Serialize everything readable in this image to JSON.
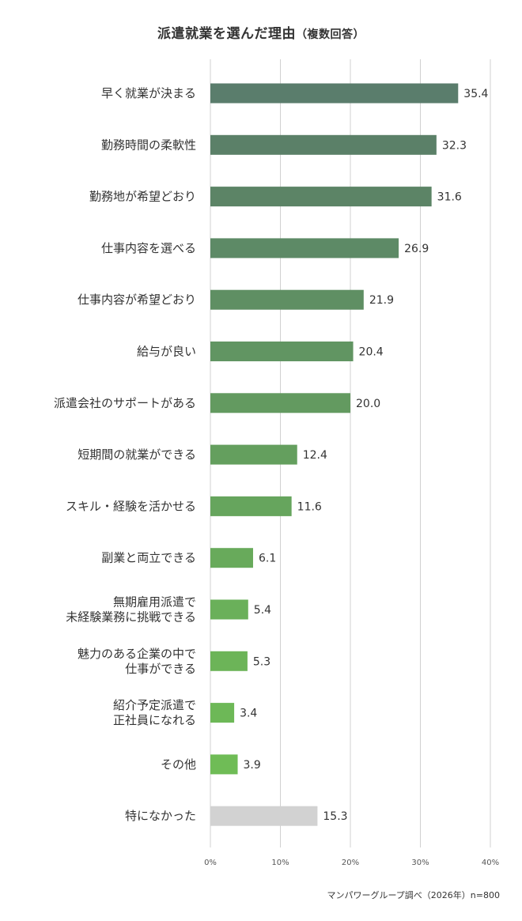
{
  "chart_data": {
    "type": "bar",
    "orientation": "horizontal",
    "title": "派遣就業を選んだ理由",
    "subtitle": "（複数回答）",
    "categories": [
      [
        "早く就業が決まる"
      ],
      [
        "勤務時間の柔軟性"
      ],
      [
        "勤務地が希望どおり"
      ],
      [
        "仕事内容を選べる"
      ],
      [
        "仕事内容が希望どおり"
      ],
      [
        "給与が良い"
      ],
      [
        "派遣会社のサポートがある"
      ],
      [
        "短期間の就業ができる"
      ],
      [
        "スキル・経験を活かせる"
      ],
      [
        "副業と両立できる"
      ],
      [
        "無期雇用派遣で",
        "未経験業務に挑戦できる"
      ],
      [
        "魅力のある企業の中で",
        "仕事ができる"
      ],
      [
        "紹介予定派遣で",
        "正社員になれる"
      ],
      [
        "その他"
      ],
      [
        "特になかった"
      ]
    ],
    "values": [
      35.4,
      32.3,
      31.6,
      26.9,
      21.9,
      20.4,
      20.0,
      12.4,
      11.6,
      6.1,
      5.4,
      5.3,
      3.4,
      3.9,
      15.3
    ],
    "value_labels": [
      "35.4",
      "32.3",
      "31.6",
      "26.9",
      "21.9",
      "20.4",
      "20.0",
      "12.4",
      "11.6",
      "6.1",
      "5.4",
      "5.3",
      "3.4",
      "3.9",
      "15.3"
    ],
    "bar_colors": [
      "#5a7d6c",
      "#5b8068",
      "#5c8466",
      "#5d8a66",
      "#5f8f63",
      "#619562",
      "#639a60",
      "#649f5e",
      "#66a55d",
      "#68aa5b",
      "#6ab05a",
      "#6cb458",
      "#6db857",
      "#6fbc56",
      "#d2d2d2"
    ],
    "xlim": [
      0,
      40
    ],
    "x_ticks": [
      0,
      10,
      20,
      30,
      40
    ],
    "x_tick_labels": [
      "0%",
      "10%",
      "20%",
      "30%",
      "40%"
    ],
    "grid": true,
    "source": "マンパワーグループ調べ（2026年）n=800"
  }
}
